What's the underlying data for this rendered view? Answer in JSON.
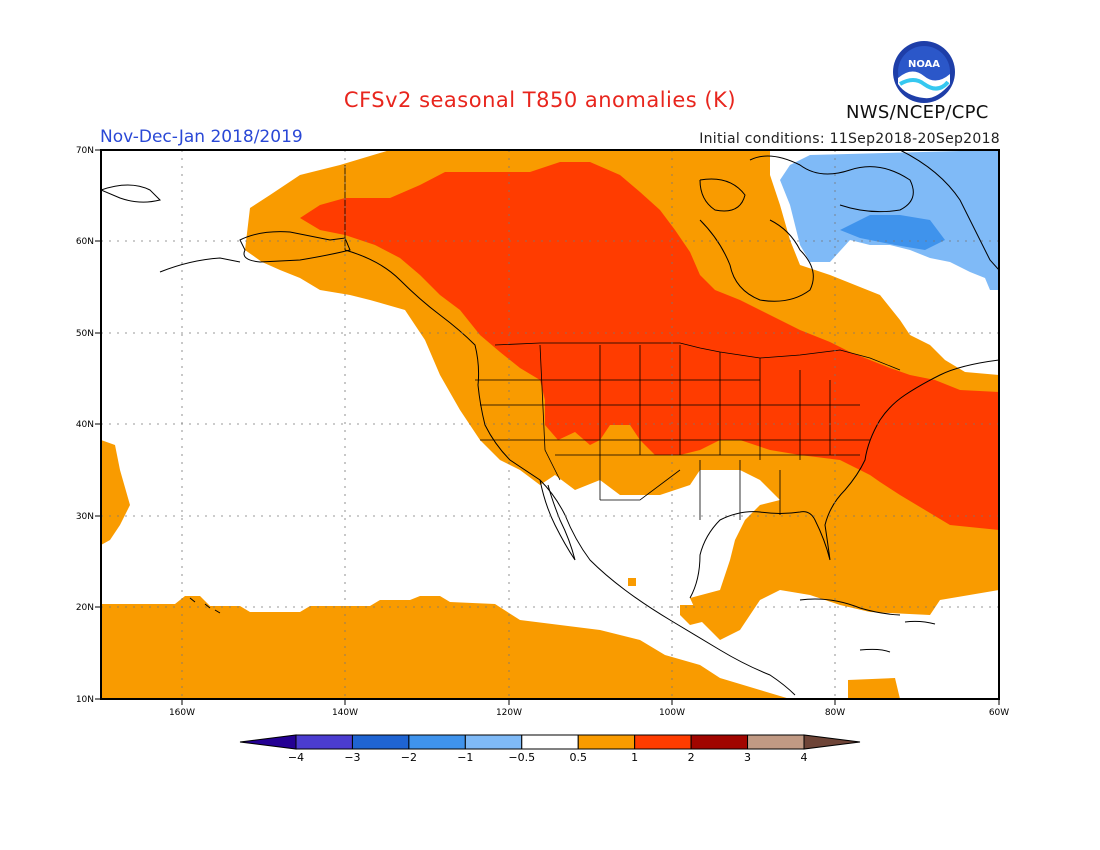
{
  "header": {
    "title": "CFSv2 seasonal T850 anomalies (K)",
    "period": "Nov-Dec-Jan 2018/2019",
    "initial_conditions": "Initial conditions: 11Sep2018-20Sep2018",
    "agency": "NWS/NCEP/CPC",
    "logo_text": "NOAA"
  },
  "map": {
    "lat_labels": [
      "70N",
      "60N",
      "50N",
      "40N",
      "30N",
      "20N",
      "10N"
    ],
    "lon_labels": [
      "160W",
      "140W",
      "120W",
      "100W",
      "80W",
      "60W"
    ],
    "extent": {
      "lon_min": -170,
      "lon_max": -60,
      "lat_min": 10,
      "lat_max": 70
    }
  },
  "colorbar": {
    "colors": [
      "#240093",
      "#4b3cd0",
      "#1f64d2",
      "#3f93ec",
      "#7fbaf7",
      "#ffffff",
      "#f99b00",
      "#ff3c00",
      "#a10500",
      "#c19a84",
      "#6e4437"
    ],
    "labels": [
      "−4",
      "−3",
      "−2",
      "−1",
      "−0.5",
      "0.5",
      "1",
      "2",
      "3",
      "4"
    ]
  }
}
